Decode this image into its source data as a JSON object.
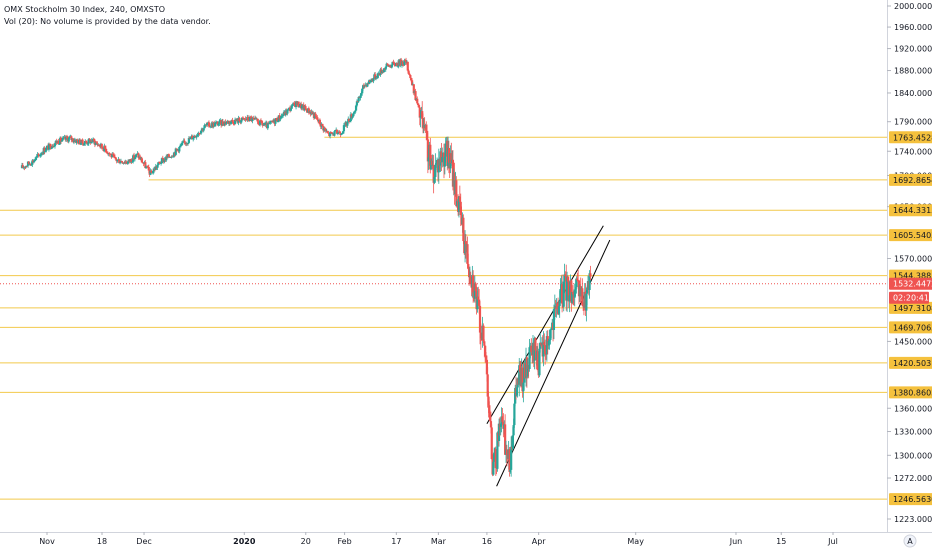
{
  "legend": {
    "title": "OMX Stockholm 30 Index, 240, OMXSTO",
    "volume_note": "Vol (20): No volume is provided by the data vendor."
  },
  "colors": {
    "up": "#26a69a",
    "down": "#ef5350",
    "level_line": "#f2c94c",
    "level_label_bg": "#f5c13d",
    "current_price_bg": "#ef5350",
    "axis_text": "#131722",
    "trendline": "#000000"
  },
  "chart_data": {
    "type": "candlestick",
    "title": "OMX Stockholm 30 Index, 240, OMXSTO",
    "ylim": [
      1205,
      2000
    ],
    "y_scale": "log",
    "y_ticks": [
      "2000.0000",
      "1960.0000",
      "1920.0000",
      "1880.0000",
      "1840.0000",
      "1790.0000",
      "1740.0000",
      "1700.0000",
      "1650.0000",
      "1570.0000",
      "1450.0000",
      "1360.0000",
      "1330.0000",
      "1300.0000",
      "1272.0000",
      "1223.0000"
    ],
    "x_ticks": [
      "Nov",
      "18",
      "Dec",
      "2020",
      "20",
      "Feb",
      "17",
      "Mar",
      "16",
      "Apr",
      "May",
      "Jun",
      "15",
      "Jul"
    ],
    "horizontal_levels": [
      "1763.4528",
      "1692.8654",
      "1644.3315",
      "1605.5403",
      "1544.3885",
      "1497.3108",
      "1469.7065",
      "1420.5031",
      "1380.8603",
      "1246.5630"
    ],
    "current_price": "1532.4472",
    "countdown": "02:20:41",
    "scale_mode_label": "A",
    "price_path": [
      [
        "Oct 24",
        1712
      ],
      [
        "Oct 28",
        1725
      ],
      [
        "Oct 31",
        1742
      ],
      [
        "Nov 4",
        1756
      ],
      [
        "Nov 8",
        1762
      ],
      [
        "Nov 12",
        1754
      ],
      [
        "Nov 15",
        1758
      ],
      [
        "Nov 19",
        1744
      ],
      [
        "Nov 22",
        1726
      ],
      [
        "Nov 26",
        1722
      ],
      [
        "Nov 29",
        1734
      ],
      [
        "Dec 3",
        1703
      ],
      [
        "Dec 6",
        1722
      ],
      [
        "Dec 10",
        1736
      ],
      [
        "Dec 13",
        1752
      ],
      [
        "Dec 17",
        1768
      ],
      [
        "Dec 20",
        1783
      ],
      [
        "Dec 27",
        1790
      ],
      [
        "Jan 3",
        1795
      ],
      [
        "Jan 8",
        1782
      ],
      [
        "Jan 13",
        1802
      ],
      [
        "Jan 17",
        1822
      ],
      [
        "Jan 22",
        1805
      ],
      [
        "Jan 27",
        1768
      ],
      [
        "Jan 31",
        1773
      ],
      [
        "Feb 4",
        1808
      ],
      [
        "Feb 7",
        1853
      ],
      [
        "Feb 11",
        1872
      ],
      [
        "Feb 14",
        1888
      ],
      [
        "Feb 18",
        1894
      ],
      [
        "Feb 20",
        1896
      ],
      [
        "Feb 24",
        1810
      ],
      [
        "Feb 26",
        1762
      ],
      [
        "Feb 28",
        1706
      ],
      [
        "Mar 3",
        1740
      ],
      [
        "Mar 5",
        1718
      ],
      [
        "Mar 6",
        1688
      ],
      [
        "Mar 9",
        1600
      ],
      [
        "Mar 10",
        1572
      ],
      [
        "Mar 12",
        1532
      ],
      [
        "Mar 16",
        1414
      ],
      [
        "Mar 17",
        1333
      ],
      [
        "Mar 18",
        1281
      ],
      [
        "Mar 19",
        1301
      ],
      [
        "Mar 20",
        1352
      ],
      [
        "Mar 23",
        1285
      ],
      [
        "Mar 24",
        1340
      ],
      [
        "Mar 25",
        1382
      ],
      [
        "Mar 26",
        1404
      ],
      [
        "Mar 27",
        1396
      ],
      [
        "Mar 30",
        1432
      ],
      [
        "Mar 31",
        1438
      ],
      [
        "Apr 1",
        1423
      ],
      [
        "Apr 2",
        1439
      ],
      [
        "Apr 3",
        1441
      ],
      [
        "Apr 6",
        1482
      ],
      [
        "Apr 7",
        1502
      ],
      [
        "Apr 8",
        1512
      ],
      [
        "Apr 9",
        1528
      ],
      [
        "Apr 14",
        1516
      ],
      [
        "Apr 15",
        1498
      ],
      [
        "Apr 16",
        1519
      ],
      [
        "Apr 17",
        1532
      ]
    ],
    "trendlines": [
      {
        "from": [
          "Mar 16",
          1340
        ],
        "to": [
          "Apr 21",
          1620
        ]
      },
      {
        "from": [
          "Mar 19",
          1262
        ],
        "to": [
          "Apr 23",
          1598
        ]
      }
    ]
  }
}
